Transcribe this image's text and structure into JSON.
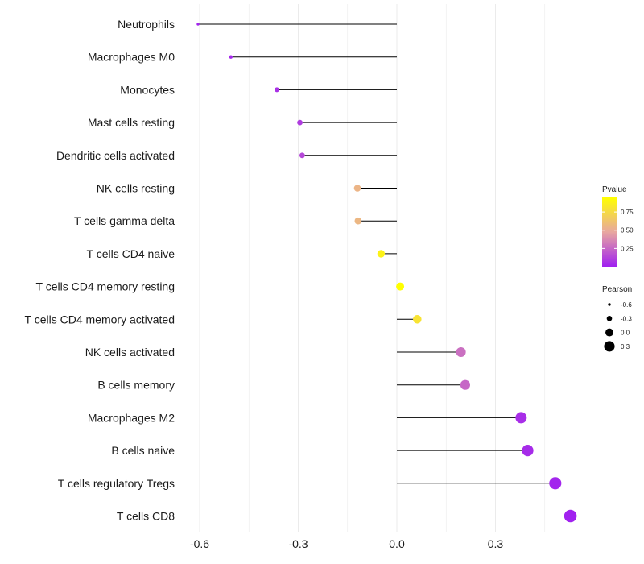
{
  "chart_data": {
    "type": "lollipop",
    "title": "",
    "xlabel": "",
    "ylabel": "",
    "xlim": [
      -0.6,
      0.5
    ],
    "x_ticks": [
      -0.6,
      -0.3,
      0.0,
      0.3
    ],
    "x_tick_labels": [
      "-0.6",
      "-0.3",
      "0.0",
      "0.3"
    ],
    "grid": true,
    "categories": [
      "Neutrophils",
      "Macrophages M0",
      "Monocytes",
      "Mast cells resting",
      "Dendritic cells activated",
      "NK cells resting",
      "T cells gamma delta",
      "T cells CD4 naive",
      "T cells CD4 memory resting",
      "T cells CD4 memory activated",
      "NK cells activated",
      "B cells memory",
      "Macrophages M2",
      "B cells naive",
      "T cells regulatory  Tregs",
      "T cells CD8"
    ],
    "pearson": [
      -0.605,
      -0.505,
      -0.365,
      -0.295,
      -0.288,
      -0.12,
      -0.118,
      -0.048,
      0.01,
      0.062,
      0.195,
      0.208,
      0.378,
      0.398,
      0.482,
      0.528
    ],
    "pvalue": [
      0.01,
      0.03,
      0.06,
      0.1,
      0.14,
      0.55,
      0.56,
      0.88,
      0.97,
      0.8,
      0.28,
      0.25,
      0.05,
      0.04,
      0.02,
      0.005
    ],
    "color_legend": {
      "title": "Pvalue",
      "ticks": [
        0.25,
        0.5,
        0.75
      ],
      "tick_labels": [
        "0.25",
        "0.50",
        "0.75"
      ],
      "range": [
        0.0,
        0.95
      ],
      "low_color": "#a020f0",
      "mid_color": "#e8a7a0",
      "high_color": "#ffff00"
    },
    "size_legend": {
      "title": "Pearson",
      "values": [
        -0.6,
        -0.3,
        0.0,
        0.3
      ],
      "labels": [
        "-0.6",
        "-0.3",
        "0.0",
        "0.3"
      ]
    },
    "colors": {
      "stem": "#000000",
      "gridline": "#ebebeb",
      "text": "#1a1a1a"
    }
  }
}
